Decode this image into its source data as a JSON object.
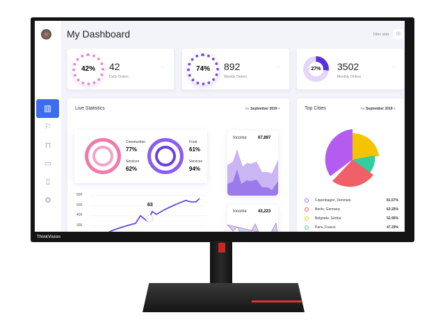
{
  "brand": "ThinkVision",
  "header": {
    "title": "My Dashboard",
    "filter_label": "Filter stats"
  },
  "sidebar": {
    "items": [
      "bar-chart-icon",
      "signpost-icon",
      "basket-icon",
      "chat-icon",
      "clipboard-icon",
      "settings-icon"
    ],
    "active": 0
  },
  "stats": [
    {
      "percent": "42%",
      "value": "42",
      "label": "Daily Orders",
      "fraction": 0.42
    },
    {
      "percent": "74%",
      "value": "892",
      "label": "Weekly Orders",
      "fraction": 0.74
    },
    {
      "percent": "27%",
      "value": "3502",
      "label": "Monthly Orders",
      "fraction": 0.27
    }
  ],
  "live": {
    "title": "Live Statistics",
    "for": "for",
    "period": "September 2019",
    "rings": [
      {
        "a_label": "Construction",
        "a_value": "77%",
        "b_label": "Services",
        "b_value": "62%"
      },
      {
        "a_label": "Food",
        "a_value": "61%",
        "b_label": "Services",
        "b_value": "94%"
      }
    ],
    "y_ticks": [
      "600",
      "500",
      "400",
      "300"
    ],
    "callout": "63",
    "income": [
      {
        "label": "Income",
        "value": "67,897"
      },
      {
        "label": "Income",
        "value": "43,223"
      }
    ]
  },
  "cities": {
    "title": "Top Cities",
    "for": "for",
    "period": "September 2019",
    "items": [
      {
        "name": "Copenhagen, Denmark",
        "value": "81.57%",
        "color": "#b45cf0"
      },
      {
        "name": "Berlin, Germany",
        "value": "63.25%",
        "color": "#f05a5a"
      },
      {
        "name": "Belgrade, Serbia",
        "value": "52.95%",
        "color": "#f5c400"
      },
      {
        "name": "Paris, France",
        "value": "47.29%",
        "color": "#2fcf9f"
      }
    ]
  }
}
